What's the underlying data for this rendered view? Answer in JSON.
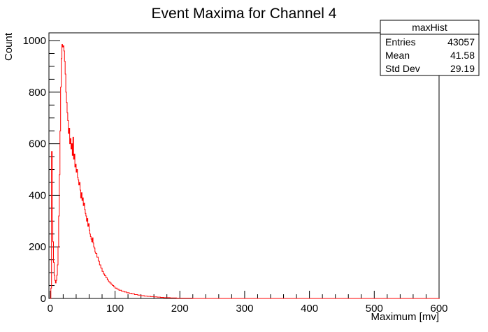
{
  "chart_data": {
    "type": "histogram",
    "title": "Event Maxima for Channel 4",
    "xlabel": "Maximum [mv]",
    "ylabel": "Count",
    "xlim": [
      -2,
      600
    ],
    "ylim": [
      0,
      1030
    ],
    "x_ticks": [
      0,
      100,
      200,
      300,
      400,
      500,
      600
    ],
    "y_ticks": [
      0,
      200,
      400,
      600,
      800,
      1000
    ],
    "grid": false,
    "line_color": "#ff0000",
    "series": [
      {
        "values": [
          [
            0,
            0
          ],
          [
            1,
            40
          ],
          [
            2,
            570
          ],
          [
            3,
            300
          ],
          [
            4,
            220
          ],
          [
            5,
            140
          ],
          [
            6,
            90
          ],
          [
            7,
            70
          ],
          [
            8,
            60
          ],
          [
            9,
            70
          ],
          [
            10,
            90
          ],
          [
            11,
            130
          ],
          [
            12,
            200
          ],
          [
            13,
            320
          ],
          [
            14,
            480
          ],
          [
            15,
            650
          ],
          [
            16,
            820
          ],
          [
            17,
            930
          ],
          [
            18,
            985
          ],
          [
            19,
            975
          ],
          [
            20,
            980
          ],
          [
            21,
            960
          ],
          [
            22,
            920
          ],
          [
            23,
            870
          ],
          [
            24,
            800
          ],
          [
            25,
            760
          ],
          [
            26,
            720
          ],
          [
            27,
            690
          ],
          [
            28,
            640
          ],
          [
            29,
            660
          ],
          [
            30,
            600
          ],
          [
            31,
            620
          ],
          [
            32,
            580
          ],
          [
            33,
            600
          ],
          [
            34,
            555
          ],
          [
            35,
            625
          ],
          [
            36,
            540
          ],
          [
            37,
            560
          ],
          [
            38,
            510
          ],
          [
            39,
            520
          ],
          [
            40,
            490
          ],
          [
            41,
            500
          ],
          [
            42,
            470
          ],
          [
            43,
            460
          ],
          [
            44,
            440
          ],
          [
            45,
            450
          ],
          [
            46,
            420
          ],
          [
            47,
            390
          ],
          [
            48,
            410
          ],
          [
            49,
            380
          ],
          [
            50,
            390
          ],
          [
            51,
            360
          ],
          [
            52,
            370
          ],
          [
            53,
            345
          ],
          [
            54,
            330
          ],
          [
            55,
            320
          ],
          [
            56,
            300
          ],
          [
            57,
            310
          ],
          [
            58,
            280
          ],
          [
            59,
            290
          ],
          [
            60,
            265
          ],
          [
            61,
            250
          ],
          [
            62,
            240
          ],
          [
            63,
            230
          ],
          [
            64,
            220
          ],
          [
            65,
            235
          ],
          [
            66,
            215
          ],
          [
            67,
            200
          ],
          [
            68,
            195
          ],
          [
            69,
            180
          ],
          [
            70,
            175
          ],
          [
            72,
            160
          ],
          [
            74,
            145
          ],
          [
            76,
            130
          ],
          [
            78,
            118
          ],
          [
            80,
            105
          ],
          [
            82,
            95
          ],
          [
            84,
            88
          ],
          [
            86,
            80
          ],
          [
            88,
            72
          ],
          [
            90,
            65
          ],
          [
            92,
            60
          ],
          [
            94,
            55
          ],
          [
            96,
            50
          ],
          [
            98,
            45
          ],
          [
            100,
            40
          ],
          [
            103,
            36
          ],
          [
            106,
            32
          ],
          [
            110,
            28
          ],
          [
            114,
            25
          ],
          [
            118,
            22
          ],
          [
            122,
            20
          ],
          [
            126,
            18
          ],
          [
            130,
            15
          ],
          [
            135,
            13
          ],
          [
            140,
            11
          ],
          [
            145,
            9
          ],
          [
            150,
            8
          ],
          [
            155,
            7
          ],
          [
            160,
            6
          ],
          [
            165,
            5
          ],
          [
            170,
            4
          ],
          [
            175,
            3
          ],
          [
            180,
            3
          ],
          [
            185,
            2
          ],
          [
            190,
            2
          ],
          [
            195,
            1
          ],
          [
            200,
            1
          ],
          [
            210,
            1
          ],
          [
            220,
            0
          ],
          [
            600,
            0
          ]
        ]
      }
    ]
  },
  "stats_box": {
    "name": "maxHist",
    "rows": [
      {
        "label": "Entries",
        "value": "43057"
      },
      {
        "label": "Mean",
        "value": "41.58"
      },
      {
        "label": "Std Dev",
        "value": "29.19"
      }
    ]
  }
}
